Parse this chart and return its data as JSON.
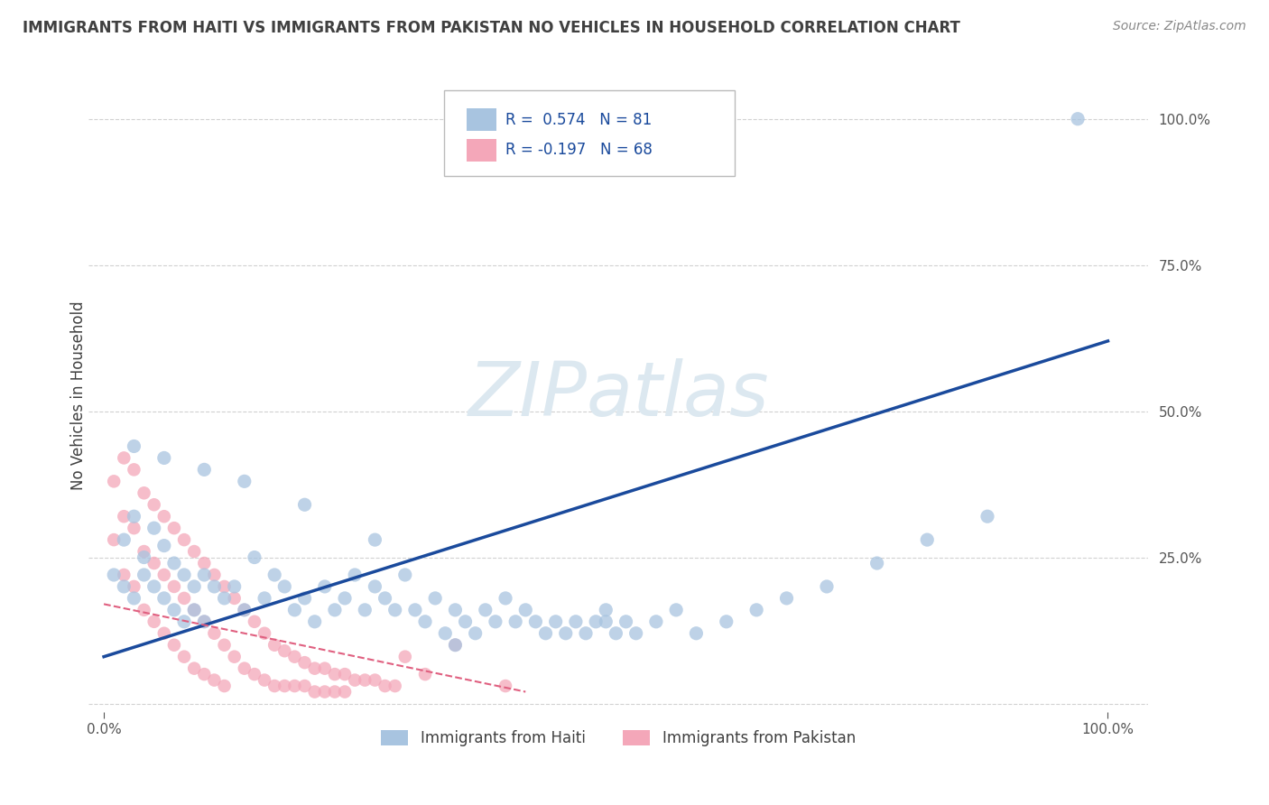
{
  "title": "IMMIGRANTS FROM HAITI VS IMMIGRANTS FROM PAKISTAN NO VEHICLES IN HOUSEHOLD CORRELATION CHART",
  "source": "Source: ZipAtlas.com",
  "ylabel_label": "No Vehicles in Household",
  "legend_label_haiti": "Immigrants from Haiti",
  "legend_label_pakistan": "Immigrants from Pakistan",
  "haiti_color": "#a8c4e0",
  "pakistan_color": "#f4a7b9",
  "haiti_line_color": "#1a4a9c",
  "pakistan_line_color": "#e06080",
  "watermark_color": "#dce8f0",
  "background_color": "#ffffff",
  "grid_color": "#cccccc",
  "title_color": "#404040",
  "haiti_R": 0.574,
  "haiti_N": 81,
  "pakistan_R": -0.197,
  "pakistan_N": 68,
  "haiti_scatter_x": [
    0.02,
    0.01,
    0.03,
    0.02,
    0.04,
    0.03,
    0.05,
    0.04,
    0.06,
    0.05,
    0.07,
    0.06,
    0.08,
    0.07,
    0.09,
    0.08,
    0.1,
    0.09,
    0.11,
    0.1,
    0.12,
    0.13,
    0.14,
    0.15,
    0.16,
    0.17,
    0.18,
    0.19,
    0.2,
    0.21,
    0.22,
    0.23,
    0.24,
    0.25,
    0.26,
    0.27,
    0.28,
    0.29,
    0.3,
    0.31,
    0.32,
    0.33,
    0.34,
    0.35,
    0.36,
    0.37,
    0.38,
    0.39,
    0.4,
    0.41,
    0.42,
    0.43,
    0.44,
    0.45,
    0.46,
    0.47,
    0.48,
    0.49,
    0.5,
    0.51,
    0.52,
    0.53,
    0.55,
    0.57,
    0.59,
    0.62,
    0.65,
    0.68,
    0.72,
    0.77,
    0.82,
    0.88,
    0.03,
    0.06,
    0.1,
    0.14,
    0.2,
    0.27,
    0.35,
    0.5,
    0.97
  ],
  "haiti_scatter_y": [
    0.28,
    0.22,
    0.32,
    0.2,
    0.25,
    0.18,
    0.3,
    0.22,
    0.27,
    0.2,
    0.24,
    0.18,
    0.22,
    0.16,
    0.2,
    0.14,
    0.22,
    0.16,
    0.2,
    0.14,
    0.18,
    0.2,
    0.16,
    0.25,
    0.18,
    0.22,
    0.2,
    0.16,
    0.18,
    0.14,
    0.2,
    0.16,
    0.18,
    0.22,
    0.16,
    0.2,
    0.18,
    0.16,
    0.22,
    0.16,
    0.14,
    0.18,
    0.12,
    0.16,
    0.14,
    0.12,
    0.16,
    0.14,
    0.18,
    0.14,
    0.16,
    0.14,
    0.12,
    0.14,
    0.12,
    0.14,
    0.12,
    0.14,
    0.16,
    0.12,
    0.14,
    0.12,
    0.14,
    0.16,
    0.12,
    0.14,
    0.16,
    0.18,
    0.2,
    0.24,
    0.28,
    0.32,
    0.44,
    0.42,
    0.4,
    0.38,
    0.34,
    0.28,
    0.1,
    0.14,
    1.0
  ],
  "pakistan_scatter_x": [
    0.01,
    0.01,
    0.02,
    0.02,
    0.02,
    0.03,
    0.03,
    0.03,
    0.04,
    0.04,
    0.04,
    0.05,
    0.05,
    0.05,
    0.06,
    0.06,
    0.06,
    0.07,
    0.07,
    0.07,
    0.08,
    0.08,
    0.08,
    0.09,
    0.09,
    0.09,
    0.1,
    0.1,
    0.1,
    0.11,
    0.11,
    0.11,
    0.12,
    0.12,
    0.12,
    0.13,
    0.13,
    0.14,
    0.14,
    0.15,
    0.15,
    0.16,
    0.16,
    0.17,
    0.17,
    0.18,
    0.18,
    0.19,
    0.19,
    0.2,
    0.2,
    0.21,
    0.21,
    0.22,
    0.22,
    0.23,
    0.23,
    0.24,
    0.24,
    0.25,
    0.26,
    0.27,
    0.28,
    0.29,
    0.3,
    0.32,
    0.35,
    0.4
  ],
  "pakistan_scatter_y": [
    0.38,
    0.28,
    0.42,
    0.32,
    0.22,
    0.4,
    0.3,
    0.2,
    0.36,
    0.26,
    0.16,
    0.34,
    0.24,
    0.14,
    0.32,
    0.22,
    0.12,
    0.3,
    0.2,
    0.1,
    0.28,
    0.18,
    0.08,
    0.26,
    0.16,
    0.06,
    0.24,
    0.14,
    0.05,
    0.22,
    0.12,
    0.04,
    0.2,
    0.1,
    0.03,
    0.18,
    0.08,
    0.16,
    0.06,
    0.14,
    0.05,
    0.12,
    0.04,
    0.1,
    0.03,
    0.09,
    0.03,
    0.08,
    0.03,
    0.07,
    0.03,
    0.06,
    0.02,
    0.06,
    0.02,
    0.05,
    0.02,
    0.05,
    0.02,
    0.04,
    0.04,
    0.04,
    0.03,
    0.03,
    0.08,
    0.05,
    0.1,
    0.03
  ]
}
